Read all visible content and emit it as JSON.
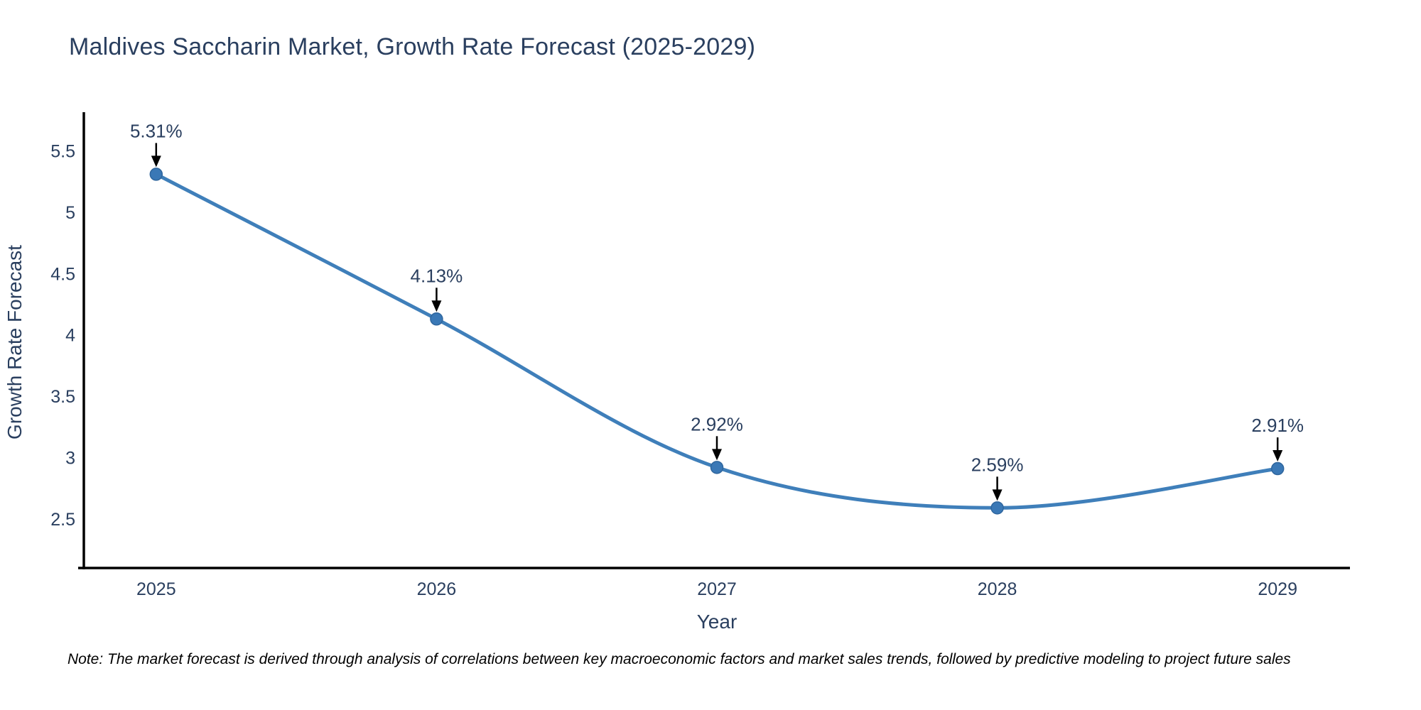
{
  "title": "Maldives Saccharin Market, Growth Rate Forecast (2025-2029)",
  "note": "Note: The market forecast is derived through analysis of correlations between key macroeconomic factors and market sales trends, followed by predictive modeling to project future sales",
  "chart_data": {
    "type": "line",
    "title": "Maldives Saccharin Market, Growth Rate Forecast (2025-2029)",
    "xlabel": "Year",
    "ylabel": "Growth Rate Forecast",
    "x": [
      2025,
      2026,
      2027,
      2028,
      2029
    ],
    "values": [
      5.31,
      4.13,
      2.92,
      2.59,
      2.91
    ],
    "point_labels": [
      "5.31%",
      "4.13%",
      "2.92%",
      "2.59%",
      "2.91%"
    ],
    "x_tick_labels": [
      "2025",
      "2026",
      "2027",
      "2028",
      "2029"
    ],
    "y_ticks": [
      2.5,
      3,
      3.5,
      4,
      4.5,
      5,
      5.5
    ],
    "xlim": [
      2024.742,
      2029.258
    ],
    "ylim": [
      2.1,
      5.816
    ],
    "line_shape": "spline",
    "grid": false,
    "legend": "none",
    "annotations": "black-down-arrows-to-points",
    "colors": {
      "line": "#3f7fba",
      "marker": "#3a78b6",
      "marker_edge": "#2f669e",
      "axis": "#000000",
      "text": "#2a3f5f",
      "arrow": "#000000",
      "background": "#ffffff"
    }
  }
}
